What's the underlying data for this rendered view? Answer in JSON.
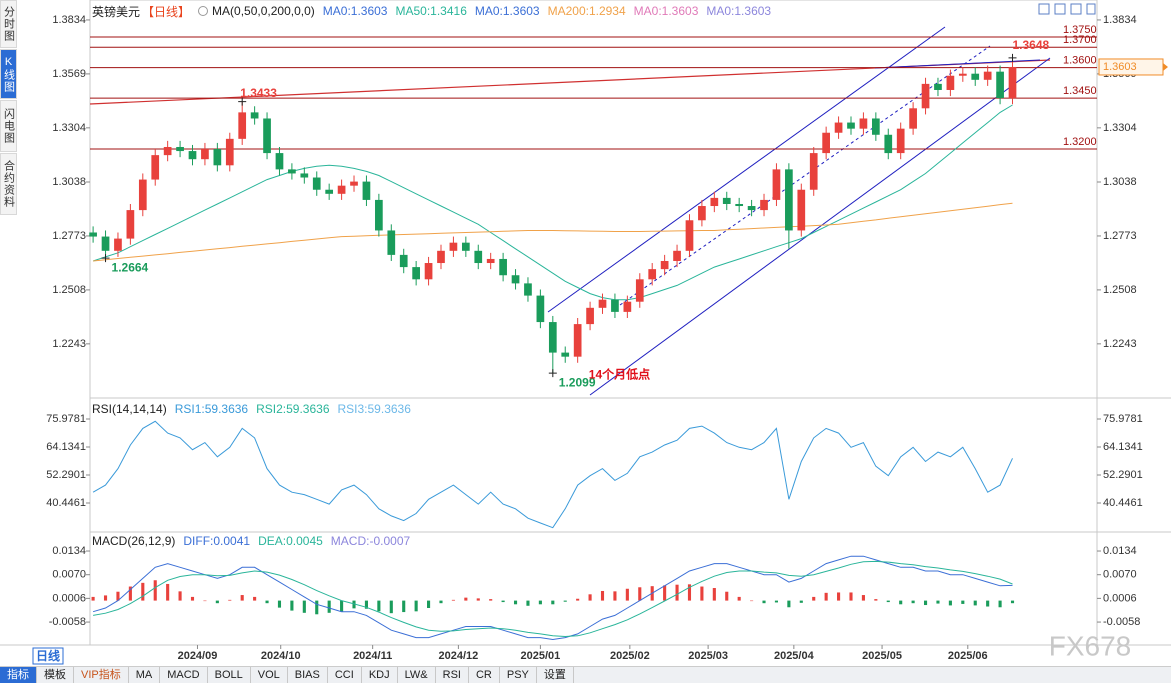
{
  "sidebar": [
    "分时图",
    "K线图",
    "闪电图",
    "合约资料"
  ],
  "bottom": {
    "period": "日线",
    "tabs": [
      "指标",
      "模板",
      "VIP指标",
      "MA",
      "MACD",
      "BOLL",
      "VOL",
      "BIAS",
      "CCI",
      "KDJ",
      "LW&",
      "RSI",
      "CR",
      "PSY",
      "设置"
    ]
  },
  "watermark": "FX678",
  "chart_data": [
    {
      "type": "candlestick",
      "title": "英镑美元",
      "period": "【日线】",
      "indicator": "MA(0,50,0,200,0,0)",
      "up_color": "#e8413c",
      "down_color": "#1a9c5b",
      "open": [
        1.279,
        1.277,
        1.27,
        1.276,
        1.29,
        1.305,
        1.317,
        1.321,
        1.319,
        1.315,
        1.32,
        1.312,
        1.325,
        1.338,
        1.335,
        1.318,
        1.31,
        1.308,
        1.306,
        1.3,
        1.298,
        1.302,
        1.304,
        1.295,
        1.28,
        1.268,
        1.262,
        1.256,
        1.264,
        1.27,
        1.274,
        1.27,
        1.264,
        1.266,
        1.258,
        1.254,
        1.248,
        1.235,
        1.22,
        1.218,
        1.234,
        1.242,
        1.246,
        1.24,
        1.245,
        1.256,
        1.261,
        1.265,
        1.27,
        1.285,
        1.292,
        1.296,
        1.293,
        1.292,
        1.29,
        1.295,
        1.31,
        1.28,
        1.3,
        1.318,
        1.328,
        1.333,
        1.33,
        1.335,
        1.327,
        1.318,
        1.33,
        1.34,
        1.352,
        1.349,
        1.356,
        1.357,
        1.354,
        1.358,
        1.345
      ],
      "high": [
        1.282,
        1.28,
        1.279,
        1.293,
        1.308,
        1.32,
        1.324,
        1.324,
        1.322,
        1.323,
        1.323,
        1.328,
        1.3433,
        1.341,
        1.338,
        1.321,
        1.313,
        1.311,
        1.309,
        1.303,
        1.305,
        1.307,
        1.307,
        1.298,
        1.283,
        1.271,
        1.265,
        1.267,
        1.273,
        1.277,
        1.277,
        1.273,
        1.269,
        1.269,
        1.261,
        1.257,
        1.251,
        1.238,
        1.223,
        1.237,
        1.245,
        1.249,
        1.249,
        1.248,
        1.259,
        1.264,
        1.268,
        1.273,
        1.288,
        1.295,
        1.299,
        1.299,
        1.296,
        1.295,
        1.298,
        1.313,
        1.313,
        1.303,
        1.321,
        1.331,
        1.336,
        1.336,
        1.338,
        1.338,
        1.33,
        1.333,
        1.343,
        1.355,
        1.355,
        1.359,
        1.36,
        1.36,
        1.361,
        1.361,
        1.3648
      ],
      "low": [
        1.274,
        1.2664,
        1.267,
        1.273,
        1.287,
        1.302,
        1.314,
        1.316,
        1.312,
        1.312,
        1.309,
        1.309,
        1.322,
        1.332,
        1.315,
        1.307,
        1.305,
        1.303,
        1.297,
        1.295,
        1.295,
        1.299,
        1.292,
        1.277,
        1.265,
        1.259,
        1.253,
        1.253,
        1.261,
        1.267,
        1.267,
        1.261,
        1.261,
        1.255,
        1.251,
        1.245,
        1.232,
        1.2099,
        1.215,
        1.215,
        1.231,
        1.239,
        1.237,
        1.237,
        1.242,
        1.253,
        1.258,
        1.262,
        1.267,
        1.282,
        1.289,
        1.29,
        1.289,
        1.287,
        1.287,
        1.292,
        1.271,
        1.277,
        1.297,
        1.315,
        1.325,
        1.327,
        1.327,
        1.324,
        1.315,
        1.315,
        1.327,
        1.337,
        1.346,
        1.346,
        1.353,
        1.351,
        1.351,
        1.342,
        1.342
      ],
      "close": [
        1.277,
        1.27,
        1.276,
        1.29,
        1.305,
        1.317,
        1.321,
        1.319,
        1.315,
        1.32,
        1.312,
        1.325,
        1.338,
        1.335,
        1.318,
        1.31,
        1.308,
        1.306,
        1.3,
        1.298,
        1.302,
        1.304,
        1.295,
        1.28,
        1.268,
        1.262,
        1.256,
        1.264,
        1.27,
        1.274,
        1.27,
        1.264,
        1.266,
        1.258,
        1.254,
        1.248,
        1.235,
        1.22,
        1.218,
        1.234,
        1.242,
        1.246,
        1.24,
        1.245,
        1.256,
        1.261,
        1.265,
        1.27,
        1.285,
        1.292,
        1.296,
        1.293,
        1.292,
        1.29,
        1.295,
        1.31,
        1.28,
        1.3,
        1.318,
        1.328,
        1.333,
        1.33,
        1.335,
        1.327,
        1.318,
        1.33,
        1.34,
        1.352,
        1.349,
        1.356,
        1.357,
        1.354,
        1.358,
        1.345,
        1.3603
      ],
      "series": [
        {
          "name": "MA0:1.3603",
          "color": "#3b6fd6"
        },
        {
          "name": "MA50:1.3416",
          "color": "#2ab59a",
          "values": [
            1.265,
            1.267,
            1.269,
            1.272,
            1.275,
            1.278,
            1.281,
            1.284,
            1.287,
            1.29,
            1.293,
            1.296,
            1.299,
            1.302,
            1.305,
            1.307,
            1.309,
            1.3105,
            1.3115,
            1.312,
            1.3115,
            1.3105,
            1.309,
            1.307,
            1.304,
            1.301,
            1.298,
            1.295,
            1.292,
            1.289,
            1.286,
            1.283,
            1.279,
            1.275,
            1.271,
            1.267,
            1.263,
            1.259,
            1.255,
            1.252,
            1.249,
            1.247,
            1.246,
            1.246,
            1.247,
            1.249,
            1.251,
            1.253,
            1.256,
            1.259,
            1.262,
            1.264,
            1.266,
            1.268,
            1.27,
            1.272,
            1.274,
            1.276,
            1.279,
            1.282,
            1.285,
            1.288,
            1.291,
            1.294,
            1.297,
            1.3,
            1.304,
            1.308,
            1.313,
            1.318,
            1.323,
            1.328,
            1.333,
            1.338,
            1.3416
          ]
        },
        {
          "name": "MA0:1.3603",
          "color": "#3b6fd6"
        },
        {
          "name": "MA200:1.2934",
          "color": "#f0a24a",
          "values": [
            1.265,
            1.2656,
            1.2662,
            1.2668,
            1.2674,
            1.268,
            1.2686,
            1.2692,
            1.2698,
            1.2704,
            1.271,
            1.2716,
            1.2722,
            1.2728,
            1.2734,
            1.274,
            1.2746,
            1.2752,
            1.2758,
            1.2764,
            1.277,
            1.2772,
            1.2774,
            1.2776,
            1.2778,
            1.278,
            1.2782,
            1.2784,
            1.2786,
            1.2788,
            1.279,
            1.2792,
            1.2794,
            1.2796,
            1.2798,
            1.28,
            1.28,
            1.28,
            1.2799,
            1.2798,
            1.2797,
            1.2796,
            1.2795,
            1.2795,
            1.2795,
            1.2796,
            1.2797,
            1.2798,
            1.2799,
            1.28,
            1.28,
            1.2803,
            1.2806,
            1.2809,
            1.2812,
            1.2815,
            1.2818,
            1.2821,
            1.2824,
            1.2827,
            1.283,
            1.2838,
            1.2845,
            1.2852,
            1.286,
            1.2867,
            1.2875,
            1.2882,
            1.2889,
            1.2897,
            1.2904,
            1.2912,
            1.2919,
            1.2927,
            1.2934
          ]
        },
        {
          "name": "MA0:1.3603",
          "color": "#e07ab8"
        },
        {
          "name": "MA0:1.3603",
          "color": "#8c86dc"
        }
      ],
      "xlim": [
        -0.25,
        80.8
      ],
      "ylim": [
        1.1977,
        1.3932
      ],
      "yticks": [
        1.3834,
        1.3569,
        1.3304,
        1.3038,
        1.2773,
        1.2508,
        1.2243
      ],
      "level_color": "#a01010",
      "levels": [
        {
          "value": 1.375,
          "label": "1.3750"
        },
        {
          "value": 1.37,
          "label": "1.3700"
        },
        {
          "value": 1.36,
          "label": "1.3600"
        },
        {
          "value": 1.345,
          "label": "1.3450"
        },
        {
          "value": 1.32,
          "label": "1.3200"
        }
      ],
      "annotations": [
        {
          "x": 12,
          "y": 1.3433,
          "color": "#e8413c"
        },
        {
          "x": 1,
          "y": 1.2664,
          "color": "#1a9c5b"
        },
        {
          "x": 37,
          "y": 1.2099,
          "color": "#1a9c5b",
          "text": "14个月低点",
          "text_color": "#e0101a"
        },
        {
          "x": 74,
          "y": 1.3648,
          "color": "#e8413c"
        }
      ],
      "last_price": 1.3603,
      "last_price_color": "#f08c28"
    },
    {
      "type": "line",
      "title": "RSI(14,14,14)",
      "series": [
        {
          "name": "RSI1:59.3636",
          "color": "#3a9ad9",
          "values": [
            45,
            48,
            55,
            65,
            72,
            75,
            70,
            68,
            63,
            66,
            60,
            64,
            72,
            68,
            55,
            48,
            45,
            44,
            42,
            40,
            46,
            48,
            44,
            38,
            35,
            33,
            36,
            42,
            45,
            48,
            44,
            40,
            45,
            40,
            38,
            34,
            32,
            30,
            38,
            48,
            52,
            55,
            50,
            53,
            60,
            62,
            65,
            67,
            72,
            73,
            70,
            66,
            64,
            63,
            66,
            72,
            42,
            58,
            68,
            72,
            70,
            64,
            66,
            56,
            52,
            60,
            64,
            58,
            62,
            60,
            64,
            55,
            45,
            48,
            59.3636
          ]
        },
        {
          "name": "RSI2:59.3636",
          "color": "#2ab59a"
        },
        {
          "name": "RSI3:59.3636",
          "color": "#6cb8e8"
        }
      ],
      "ylim": [
        28.18,
        84.02
      ],
      "yticks": [
        75.9781,
        64.1341,
        52.2901,
        40.4461
      ]
    },
    {
      "type": "combo",
      "title": "MACD(26,12,9)",
      "series": [
        {
          "name": "DIFF:0.0041",
          "color": "#3b6fd6",
          "kind": "line",
          "values": [
            -0.003,
            -0.002,
            0.0,
            0.003,
            0.006,
            0.009,
            0.01,
            0.009,
            0.008,
            0.007,
            0.006,
            0.007,
            0.009,
            0.009,
            0.007,
            0.005,
            0.003,
            0.001,
            -0.001,
            -0.002,
            -0.003,
            -0.003,
            -0.004,
            -0.006,
            -0.008,
            -0.009,
            -0.01,
            -0.01,
            -0.009,
            -0.008,
            -0.007,
            -0.007,
            -0.007,
            -0.008,
            -0.009,
            -0.01,
            -0.01,
            -0.0105,
            -0.01,
            -0.009,
            -0.007,
            -0.005,
            -0.004,
            -0.002,
            0.0,
            0.002,
            0.004,
            0.006,
            0.008,
            0.009,
            0.01,
            0.01,
            0.009,
            0.008,
            0.007,
            0.007,
            0.005,
            0.006,
            0.008,
            0.01,
            0.011,
            0.012,
            0.012,
            0.011,
            0.01,
            0.009,
            0.009,
            0.008,
            0.008,
            0.007,
            0.007,
            0.006,
            0.005,
            0.004,
            0.0041
          ]
        },
        {
          "name": "DEA:0.0045",
          "color": "#2ab59a",
          "kind": "line",
          "values": [
            -0.004,
            -0.0034,
            -0.0024,
            -0.0008,
            0.0012,
            0.0035,
            0.0055,
            0.0065,
            0.007,
            0.007,
            0.0067,
            0.0068,
            0.0075,
            0.008,
            0.0077,
            0.0069,
            0.0057,
            0.0043,
            0.0027,
            0.0013,
            0.0,
            -0.0009,
            -0.0018,
            -0.0031,
            -0.0046,
            -0.0059,
            -0.0071,
            -0.008,
            -0.0083,
            -0.0082,
            -0.0078,
            -0.0076,
            -0.0074,
            -0.0076,
            -0.008,
            -0.0086,
            -0.009,
            -0.0095,
            -0.0097,
            -0.0095,
            -0.0087,
            -0.0076,
            -0.0065,
            -0.0052,
            -0.0036,
            -0.0019,
            -0.0001,
            0.0017,
            0.0036,
            0.0052,
            0.0066,
            0.0076,
            0.008,
            0.008,
            0.0077,
            0.0075,
            0.0068,
            0.0066,
            0.007,
            0.0079,
            0.0088,
            0.0098,
            0.0105,
            0.0106,
            0.0104,
            0.01,
            0.0097,
            0.0092,
            0.0088,
            0.0083,
            0.0079,
            0.0073,
            0.0066,
            0.0058,
            0.0045
          ]
        },
        {
          "name": "MACD:-0.0007",
          "color": "#8c86dc",
          "kind": "bar",
          "up_color": "#e8413c",
          "down_color": "#1a9c5b",
          "values": [
            0.001,
            0.0014,
            0.0024,
            0.0038,
            0.0048,
            0.0055,
            0.0045,
            0.0025,
            0.001,
            0.0,
            -0.0007,
            0.0002,
            0.0015,
            0.001,
            -0.0007,
            -0.0019,
            -0.0027,
            -0.0033,
            -0.0037,
            -0.0033,
            -0.003,
            -0.0021,
            -0.0022,
            -0.0029,
            -0.0034,
            -0.0031,
            -0.0029,
            -0.002,
            -0.0007,
            0.0002,
            0.0008,
            0.0006,
            0.0004,
            -0.0004,
            -0.001,
            -0.0014,
            -0.001,
            -0.001,
            -0.0003,
            0.0005,
            0.0017,
            0.0026,
            0.0025,
            0.0032,
            0.0036,
            0.0039,
            0.0041,
            0.0043,
            0.0044,
            0.0038,
            0.0034,
            0.0024,
            0.001,
            0.0,
            -0.0007,
            -0.0005,
            -0.0018,
            -0.0006,
            0.001,
            0.0021,
            0.0022,
            0.0022,
            0.0015,
            0.0004,
            -0.0004,
            -0.001,
            -0.0007,
            -0.0012,
            -0.0008,
            -0.0013,
            -0.0009,
            -0.0013,
            -0.0016,
            -0.0018,
            -0.0007
          ]
        }
      ],
      "ylim": [
        -0.012,
        0.018
      ],
      "yticks": [
        0.0134,
        {
          "value": 0.007,
          "label": "0.0070"
        },
        0.0006,
        -0.0058
      ],
      "xticks": [
        {
          "value": 8.4,
          "label": "2024/09"
        },
        {
          "value": 15.1,
          "label": "2024/10"
        },
        {
          "value": 22.5,
          "label": "2024/11"
        },
        {
          "value": 29.4,
          "label": "2024/12"
        },
        {
          "value": 36,
          "label": "2025/01"
        },
        {
          "value": 43.2,
          "label": "2025/02"
        },
        {
          "value": 49.5,
          "label": "2025/03"
        },
        {
          "value": 56.4,
          "label": "2025/04"
        },
        {
          "value": 63.5,
          "label": "2025/05"
        },
        {
          "value": 70.4,
          "label": "2025/06"
        }
      ]
    }
  ]
}
